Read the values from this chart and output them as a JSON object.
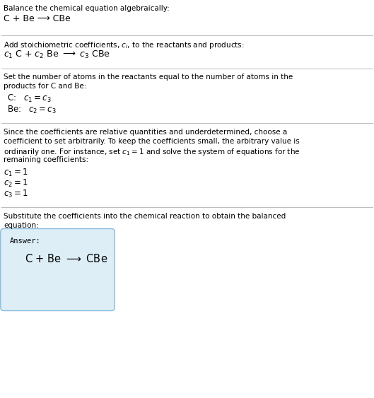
{
  "title": "Balance the chemical equation algebraically:",
  "section1_eq": "C + Be ⟶ CBe",
  "section2_title": "Add stoichiometric coefficients, $c_i$, to the reactants and products:",
  "section3_line1": "Set the number of atoms in the reactants equal to the number of atoms in the",
  "section3_line2": "products for C and Be:",
  "section3_c": "C:   $c_1 = c_3$",
  "section3_be": "Be:   $c_2 = c_3$",
  "section4_line1": "Since the coefficients are relative quantities and underdetermined, choose a",
  "section4_line2": "coefficient to set arbitrarily. To keep the coefficients small, the arbitrary value is",
  "section4_line3": "ordinarily one. For instance, set $c_1 = 1$ and solve the system of equations for the",
  "section4_line4": "remaining coefficients:",
  "section5_line1": "Substitute the coefficients into the chemical reaction to obtain the balanced",
  "section5_line2": "equation:",
  "answer_label": "Answer:",
  "answer_eq": "C + Be ⟶ CBe",
  "bg_color": "#ffffff",
  "box_bg": "#ddeef6",
  "box_border": "#88bbdd",
  "text_color": "#000000",
  "line_color": "#bbbbbb",
  "fs_body": 7.5,
  "fs_eq": 9.0,
  "fs_coeff": 8.5
}
